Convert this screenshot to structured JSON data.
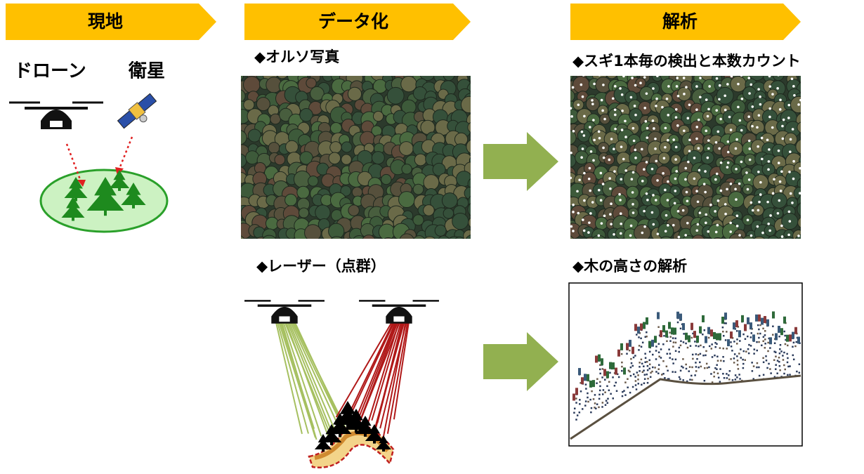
{
  "field": {
    "header": "現地",
    "drone": "ドローン",
    "satellite": "衛星"
  },
  "data": {
    "header": "データ化",
    "ortho": "◆オルソ写真",
    "laser": "◆レーザー（点群）"
  },
  "analysis": {
    "header": "解析",
    "count": "◆スギ1本毎の検出と本数カウント",
    "height": "◆木の高さの解析"
  }
}
